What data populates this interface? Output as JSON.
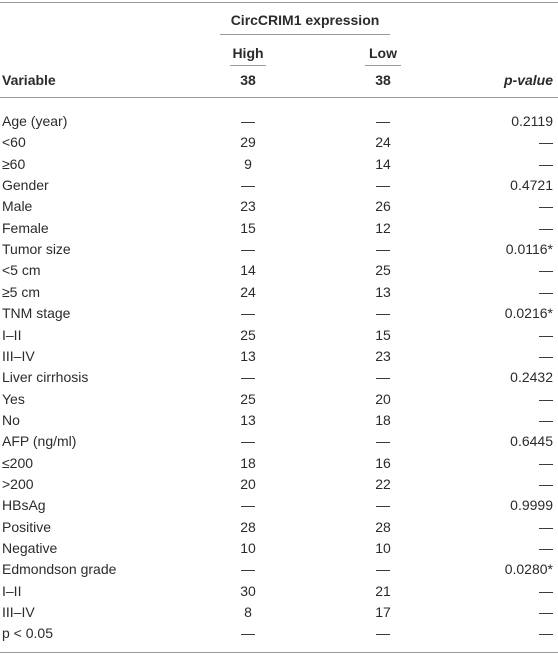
{
  "table": {
    "group_header": "CircCRIM1 expression",
    "columns": [
      "Variable",
      "High",
      "Low",
      "p-value"
    ],
    "counts": [
      "38",
      "38"
    ],
    "rows": [
      [
        "Age (year)",
        "—",
        "—",
        "0.2119"
      ],
      [
        "<60",
        "29",
        "24",
        "—"
      ],
      [
        "≥60",
        "9",
        "14",
        "—"
      ],
      [
        "Gender",
        "—",
        "—",
        "0.4721"
      ],
      [
        "Male",
        "23",
        "26",
        "—"
      ],
      [
        "Female",
        "15",
        "12",
        "—"
      ],
      [
        "Tumor size",
        "—",
        "—",
        "0.0116*"
      ],
      [
        "<5 cm",
        "14",
        "25",
        "—"
      ],
      [
        "≥5 cm",
        "24",
        "13",
        "—"
      ],
      [
        "TNM stage",
        "—",
        "—",
        "0.0216*"
      ],
      [
        "I–II",
        "25",
        "15",
        "—"
      ],
      [
        "III–IV",
        "13",
        "23",
        "—"
      ],
      [
        "Liver cirrhosis",
        "—",
        "—",
        "0.2432"
      ],
      [
        "Yes",
        "25",
        "20",
        "—"
      ],
      [
        "No",
        "13",
        "18",
        "—"
      ],
      [
        "AFP (ng/ml)",
        "—",
        "—",
        "0.6445"
      ],
      [
        "≤200",
        "18",
        "16",
        "—"
      ],
      [
        ">200",
        "20",
        "22",
        "—"
      ],
      [
        "HBsAg",
        "—",
        "—",
        "0.9999"
      ],
      [
        "Positive",
        "28",
        "28",
        "—"
      ],
      [
        "Negative",
        "10",
        "10",
        "—"
      ],
      [
        "Edmondson grade",
        "—",
        "—",
        "0.0280*"
      ],
      [
        "I–II",
        "30",
        "21",
        "—"
      ],
      [
        "III–IV",
        "8",
        "17",
        "—"
      ],
      [
        "p < 0.05",
        "—",
        "—",
        "—"
      ]
    ]
  }
}
